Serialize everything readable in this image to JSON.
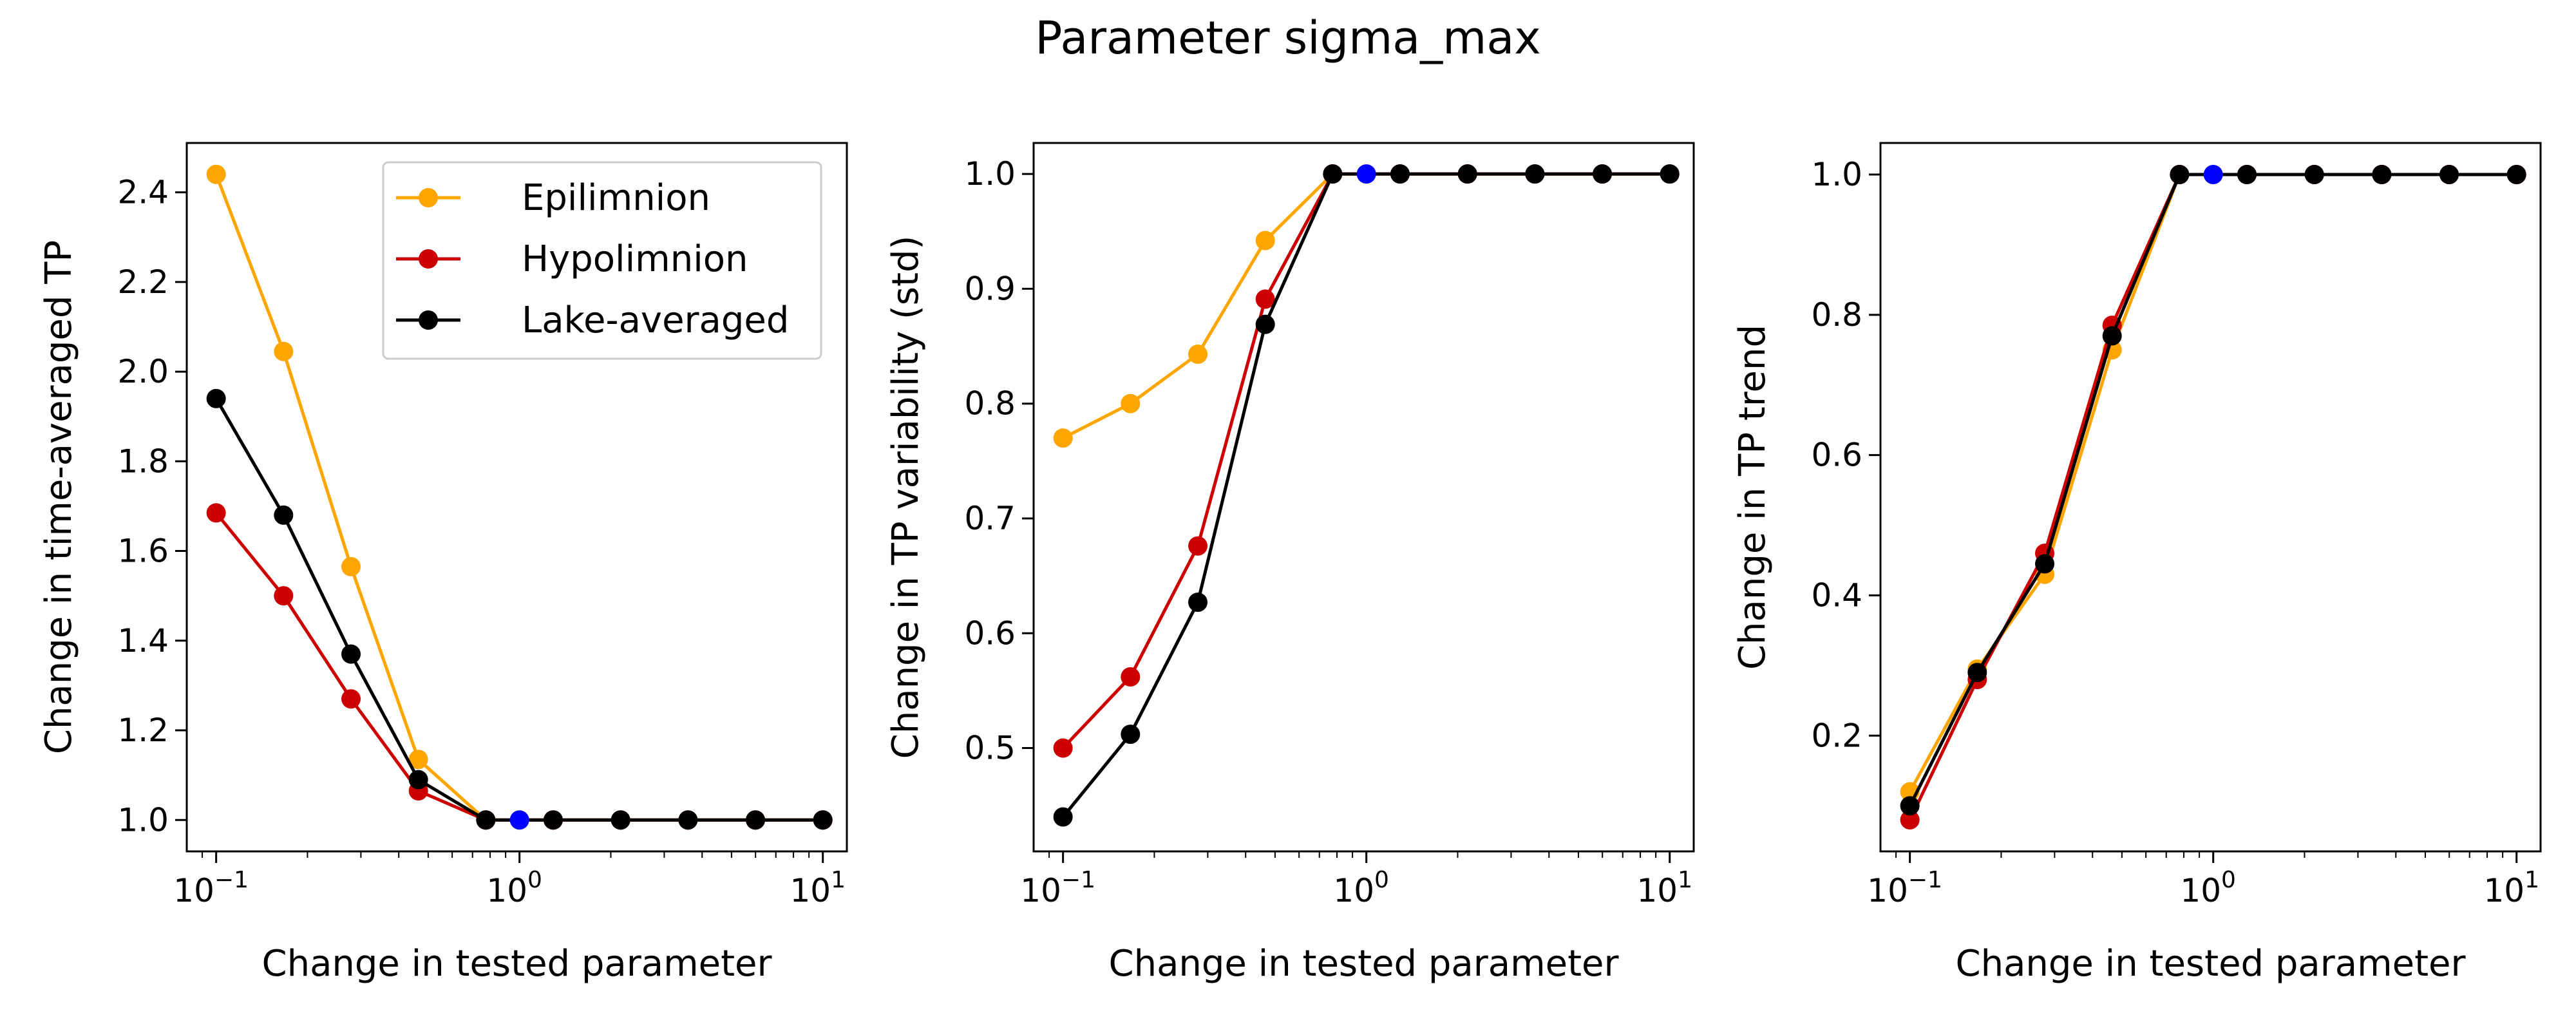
{
  "figure": {
    "title": "Parameter sigma_max"
  },
  "colors": {
    "epilimnion": "#FFA500",
    "hypolimnion": "#CC0000",
    "lake": "#000000",
    "baseline": "#0000FF"
  },
  "chart_data": [
    {
      "type": "line",
      "xscale": "log",
      "xlim": [
        0.08,
        12
      ],
      "ylim": [
        0.93,
        2.51
      ],
      "xticks": [
        0.1,
        1,
        10
      ],
      "xtick_labels": [
        [
          "10",
          "−1"
        ],
        [
          "10",
          "0"
        ],
        [
          "10",
          "1"
        ]
      ],
      "yticks": [
        1.0,
        1.2,
        1.4,
        1.6,
        1.8,
        2.0,
        2.2,
        2.4
      ],
      "ytick_labels": [
        "1.0",
        "1.2",
        "1.4",
        "1.6",
        "1.8",
        "2.0",
        "2.2",
        "2.4"
      ],
      "xlabel": "Change in tested parameter",
      "ylabel": "Change in time-averaged TP",
      "legend": {
        "placement": "top-right",
        "entries": [
          "Epilimnion",
          "Hypolimnion",
          "Lake-averaged"
        ]
      },
      "x": [
        0.1,
        0.1668,
        0.2783,
        0.4642,
        0.7743,
        1.0,
        1.2915,
        2.1544,
        3.5938,
        5.9948,
        10.0
      ],
      "series": [
        {
          "name": "Epilimnion",
          "color": "#FFA500",
          "values": [
            2.44,
            2.045,
            1.565,
            1.135,
            1.0,
            null,
            1.0,
            1.0,
            1.0,
            1.0,
            1.0
          ]
        },
        {
          "name": "Hypolimnion",
          "color": "#CC0000",
          "values": [
            1.685,
            1.5,
            1.27,
            1.065,
            1.0,
            null,
            1.0,
            1.0,
            1.0,
            1.0,
            1.0
          ]
        },
        {
          "name": "Lake-averaged",
          "color": "#000000",
          "values": [
            1.94,
            1.68,
            1.37,
            1.09,
            1.0,
            null,
            1.0,
            1.0,
            1.0,
            1.0,
            1.0
          ]
        }
      ],
      "baseline_point": {
        "x": 1.0,
        "y": 1.0,
        "color": "#0000FF"
      }
    },
    {
      "type": "line",
      "xscale": "log",
      "xlim": [
        0.08,
        12
      ],
      "ylim": [
        0.41,
        1.027
      ],
      "xticks": [
        0.1,
        1,
        10
      ],
      "xtick_labels": [
        [
          "10",
          "−1"
        ],
        [
          "10",
          "0"
        ],
        [
          "10",
          "1"
        ]
      ],
      "yticks": [
        0.5,
        0.6,
        0.7,
        0.8,
        0.9,
        1.0
      ],
      "ytick_labels": [
        "0.5",
        "0.6",
        "0.7",
        "0.8",
        "0.9",
        "1.0"
      ],
      "xlabel": "Change in tested parameter",
      "ylabel": "Change in TP variability (std)",
      "x": [
        0.1,
        0.1668,
        0.2783,
        0.4642,
        0.7743,
        1.0,
        1.2915,
        2.1544,
        3.5938,
        5.9948,
        10.0
      ],
      "series": [
        {
          "name": "Epilimnion",
          "color": "#FFA500",
          "values": [
            0.77,
            0.8,
            0.843,
            0.942,
            1.0,
            null,
            1.0,
            1.0,
            1.0,
            1.0,
            1.0
          ]
        },
        {
          "name": "Hypolimnion",
          "color": "#CC0000",
          "values": [
            0.5,
            0.562,
            0.676,
            0.891,
            1.0,
            null,
            1.0,
            1.0,
            1.0,
            1.0,
            1.0
          ]
        },
        {
          "name": "Lake-averaged",
          "color": "#000000",
          "values": [
            0.44,
            0.512,
            0.627,
            0.869,
            1.0,
            null,
            1.0,
            1.0,
            1.0,
            1.0,
            1.0
          ]
        }
      ],
      "baseline_point": {
        "x": 1.0,
        "y": 1.0,
        "color": "#0000FF"
      }
    },
    {
      "type": "line",
      "xscale": "log",
      "xlim": [
        0.08,
        12
      ],
      "ylim": [
        0.035,
        1.045
      ],
      "xticks": [
        0.1,
        1,
        10
      ],
      "xtick_labels": [
        [
          "10",
          "−1"
        ],
        [
          "10",
          "0"
        ],
        [
          "10",
          "1"
        ]
      ],
      "yticks": [
        0.2,
        0.4,
        0.6,
        0.8,
        1.0
      ],
      "ytick_labels": [
        "0.2",
        "0.4",
        "0.6",
        "0.8",
        "1.0"
      ],
      "xlabel": "Change in tested parameter",
      "ylabel": "Change in TP trend",
      "x": [
        0.1,
        0.1668,
        0.2783,
        0.4642,
        0.7743,
        1.0,
        1.2915,
        2.1544,
        3.5938,
        5.9948,
        10.0
      ],
      "series": [
        {
          "name": "Epilimnion",
          "color": "#FFA500",
          "values": [
            0.12,
            0.295,
            0.43,
            0.75,
            1.0,
            null,
            1.0,
            1.0,
            1.0,
            1.0,
            1.0
          ]
        },
        {
          "name": "Hypolimnion",
          "color": "#CC0000",
          "values": [
            0.08,
            0.28,
            0.46,
            0.785,
            1.0,
            null,
            1.0,
            1.0,
            1.0,
            1.0,
            1.0
          ]
        },
        {
          "name": "Lake-averaged",
          "color": "#000000",
          "values": [
            0.1,
            0.29,
            0.445,
            0.77,
            1.0,
            null,
            1.0,
            1.0,
            1.0,
            1.0,
            1.0
          ]
        }
      ],
      "baseline_point": {
        "x": 1.0,
        "y": 1.0,
        "color": "#0000FF"
      }
    }
  ]
}
